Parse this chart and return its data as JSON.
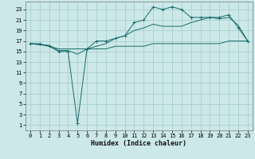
{
  "xlabel": "Humidex (Indice chaleur)",
  "bg_color": "#cce8e8",
  "grid_color": "#aacfcf",
  "line_color": "#1a6b6b",
  "x_ticks": [
    0,
    1,
    2,
    3,
    4,
    5,
    6,
    7,
    8,
    9,
    10,
    11,
    12,
    13,
    14,
    15,
    16,
    17,
    18,
    19,
    20,
    21,
    22,
    23
  ],
  "y_ticks": [
    1,
    3,
    5,
    7,
    9,
    11,
    13,
    15,
    17,
    19,
    21,
    23
  ],
  "xlim": [
    -0.5,
    23.5
  ],
  "ylim": [
    0,
    24.5
  ],
  "line1_x": [
    0,
    1,
    2,
    3,
    4,
    5,
    6,
    7,
    8,
    9,
    10,
    11,
    12,
    13,
    14,
    15,
    16,
    17,
    18,
    19,
    20,
    21,
    22,
    23
  ],
  "line1_y": [
    16.5,
    16.3,
    16.2,
    15.2,
    15.2,
    14.5,
    15.5,
    16.0,
    16.5,
    17.5,
    18.0,
    19.0,
    19.5,
    20.2,
    19.8,
    19.8,
    19.8,
    20.5,
    21.0,
    21.5,
    21.2,
    21.5,
    20.0,
    17.0
  ],
  "line2_x": [
    0,
    1,
    2,
    3,
    4,
    5,
    6,
    7,
    8,
    9,
    10,
    11,
    12,
    13,
    14,
    15,
    16,
    17,
    18,
    19,
    20,
    21,
    22,
    23
  ],
  "line2_y": [
    16.5,
    16.5,
    16.0,
    15.0,
    15.0,
    1.3,
    15.5,
    17.0,
    17.0,
    17.5,
    18.0,
    20.5,
    21.0,
    23.5,
    23.0,
    23.5,
    23.0,
    21.5,
    21.5,
    21.5,
    21.5,
    22.0,
    19.5,
    17.0
  ],
  "line3_x": [
    0,
    1,
    2,
    3,
    4,
    5,
    6,
    7,
    8,
    9,
    10,
    11,
    12,
    13,
    14,
    15,
    16,
    17,
    18,
    19,
    20,
    21,
    22,
    23
  ],
  "line3_y": [
    16.5,
    16.3,
    16.0,
    15.5,
    15.5,
    15.5,
    15.5,
    15.5,
    15.5,
    16.0,
    16.0,
    16.0,
    16.0,
    16.5,
    16.5,
    16.5,
    16.5,
    16.5,
    16.5,
    16.5,
    16.5,
    17.0,
    17.0,
    17.0
  ]
}
